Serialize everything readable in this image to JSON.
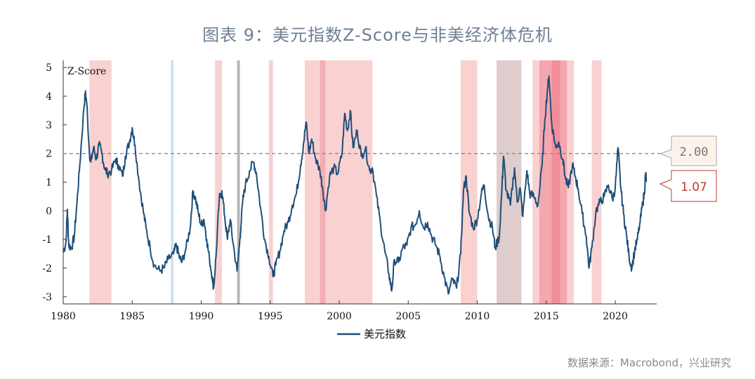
{
  "title": "图表 9：美元指数Z-Score与非美经济体危机",
  "source": "数据来源：Macrobond，兴业研究",
  "chart_data": {
    "type": "line",
    "ylabel": "Z-Score",
    "ylim": [
      -3.25,
      5.25
    ],
    "xlim": [
      1980,
      2023.0
    ],
    "yticks": [
      5,
      4,
      3,
      2,
      1,
      0,
      -1,
      -2,
      -3
    ],
    "xticks": [
      1980,
      1985,
      1990,
      1995,
      2000,
      2005,
      2010,
      2015,
      2020
    ],
    "reference_line": {
      "y": 2.0,
      "label": "2.00",
      "color": "#8c8c8c"
    },
    "last_value": {
      "y": 1.07,
      "label": "1.07",
      "color": "#c0392b"
    },
    "legend": [
      "美元指数"
    ],
    "series_color": "#1f4e79",
    "shaded_periods": [
      {
        "start": 1981.9,
        "end": 1983.5,
        "color": "#f8c9c9"
      },
      {
        "start": 1987.8,
        "end": 1988.0,
        "color": "#c9dbea"
      },
      {
        "start": 1991.0,
        "end": 1991.5,
        "color": "#f8c9c9"
      },
      {
        "start": 1992.6,
        "end": 1992.8,
        "color": "#aaaaaa"
      },
      {
        "start": 1994.9,
        "end": 1995.2,
        "color": "#f8c9c9"
      },
      {
        "start": 1997.5,
        "end": 2002.4,
        "color": "#f8c9c9"
      },
      {
        "start": 1998.6,
        "end": 1999.0,
        "color": "#f3a8ae"
      },
      {
        "start": 2008.8,
        "end": 2010.0,
        "color": "#f8c9c9"
      },
      {
        "start": 2011.4,
        "end": 2013.2,
        "color": "#d9c3c3"
      },
      {
        "start": 2014.0,
        "end": 2017.0,
        "color": "#f8c9c9"
      },
      {
        "start": 2014.5,
        "end": 2016.5,
        "color": "#f3a0a8"
      },
      {
        "start": 2015.4,
        "end": 2016.0,
        "color": "#f08a95"
      },
      {
        "start": 2018.3,
        "end": 2019.0,
        "color": "#f8c9c9"
      }
    ],
    "points": [
      [
        1980.0,
        -1.45
      ],
      [
        1980.2,
        -1.1
      ],
      [
        1980.3,
        0.05
      ],
      [
        1980.4,
        -1.2
      ],
      [
        1980.6,
        -1.3
      ],
      [
        1980.8,
        -0.9
      ],
      [
        1981.0,
        0.3
      ],
      [
        1981.2,
        1.6
      ],
      [
        1981.5,
        3.6
      ],
      [
        1981.6,
        4.1
      ],
      [
        1981.7,
        3.8
      ],
      [
        1981.9,
        2.0
      ],
      [
        1982.0,
        1.7
      ],
      [
        1982.2,
        2.2
      ],
      [
        1982.4,
        1.8
      ],
      [
        1982.6,
        2.3
      ],
      [
        1982.8,
        2.0
      ],
      [
        1983.0,
        1.5
      ],
      [
        1983.2,
        1.3
      ],
      [
        1983.5,
        1.4
      ],
      [
        1983.8,
        1.8
      ],
      [
        1984.0,
        1.6
      ],
      [
        1984.3,
        1.2
      ],
      [
        1984.5,
        1.9
      ],
      [
        1984.8,
        2.4
      ],
      [
        1985.0,
        2.9
      ],
      [
        1985.2,
        2.3
      ],
      [
        1985.5,
        1.0
      ],
      [
        1985.8,
        0.0
      ],
      [
        1986.0,
        -0.6
      ],
      [
        1986.3,
        -1.3
      ],
      [
        1986.6,
        -1.9
      ],
      [
        1987.0,
        -2.1
      ],
      [
        1987.3,
        -2.0
      ],
      [
        1987.6,
        -1.7
      ],
      [
        1988.0,
        -1.5
      ],
      [
        1988.2,
        -1.2
      ],
      [
        1988.4,
        -1.6
      ],
      [
        1988.6,
        -1.8
      ],
      [
        1988.9,
        -1.3
      ],
      [
        1989.2,
        -0.6
      ],
      [
        1989.4,
        0.7
      ],
      [
        1989.6,
        0.4
      ],
      [
        1989.8,
        -0.1
      ],
      [
        1990.0,
        -0.5
      ],
      [
        1990.2,
        -0.3
      ],
      [
        1990.4,
        -1.0
      ],
      [
        1990.6,
        -1.7
      ],
      [
        1990.8,
        -2.3
      ],
      [
        1990.9,
        -2.7
      ],
      [
        1991.1,
        -1.4
      ],
      [
        1991.3,
        0.4
      ],
      [
        1991.5,
        0.7
      ],
      [
        1991.7,
        -0.2
      ],
      [
        1991.9,
        -1.0
      ],
      [
        1992.1,
        -0.3
      ],
      [
        1992.3,
        -1.1
      ],
      [
        1992.6,
        -2.1
      ],
      [
        1992.8,
        -1.0
      ],
      [
        1993.0,
        0.3
      ],
      [
        1993.2,
        0.9
      ],
      [
        1993.5,
        1.4
      ],
      [
        1993.8,
        1.7
      ],
      [
        1994.0,
        1.3
      ],
      [
        1994.3,
        0.1
      ],
      [
        1994.6,
        -1.0
      ],
      [
        1994.9,
        -1.6
      ],
      [
        1995.2,
        -2.3
      ],
      [
        1995.4,
        -1.9
      ],
      [
        1995.7,
        -1.4
      ],
      [
        1996.0,
        -0.7
      ],
      [
        1996.3,
        -0.4
      ],
      [
        1996.6,
        0.2
      ],
      [
        1996.9,
        0.6
      ],
      [
        1997.2,
        1.6
      ],
      [
        1997.4,
        2.3
      ],
      [
        1997.6,
        3.1
      ],
      [
        1997.8,
        2.0
      ],
      [
        1998.0,
        2.5
      ],
      [
        1998.3,
        1.8
      ],
      [
        1998.6,
        1.4
      ],
      [
        1998.8,
        0.8
      ],
      [
        1999.0,
        0.0
      ],
      [
        1999.3,
        1.2
      ],
      [
        1999.6,
        1.5
      ],
      [
        1999.9,
        1.3
      ],
      [
        2000.2,
        2.0
      ],
      [
        2000.4,
        3.4
      ],
      [
        2000.6,
        2.8
      ],
      [
        2000.8,
        3.5
      ],
      [
        2001.0,
        2.2
      ],
      [
        2001.3,
        2.8
      ],
      [
        2001.6,
        1.9
      ],
      [
        2001.9,
        2.2
      ],
      [
        2002.2,
        1.4
      ],
      [
        2002.4,
        1.5
      ],
      [
        2002.7,
        0.5
      ],
      [
        2003.0,
        -0.5
      ],
      [
        2003.3,
        -1.4
      ],
      [
        2003.6,
        -2.2
      ],
      [
        2003.8,
        -2.8
      ],
      [
        2004.0,
        -1.7
      ],
      [
        2004.3,
        -1.8
      ],
      [
        2004.6,
        -1.3
      ],
      [
        2004.9,
        -1.2
      ],
      [
        2005.2,
        -0.6
      ],
      [
        2005.5,
        -0.5
      ],
      [
        2005.8,
        0.0
      ],
      [
        2006.1,
        -0.6
      ],
      [
        2006.4,
        -0.4
      ],
      [
        2006.7,
        -0.9
      ],
      [
        2007.0,
        -1.2
      ],
      [
        2007.3,
        -1.6
      ],
      [
        2007.6,
        -2.3
      ],
      [
        2007.9,
        -2.9
      ],
      [
        2008.2,
        -2.4
      ],
      [
        2008.5,
        -2.7
      ],
      [
        2008.8,
        -1.5
      ],
      [
        2009.0,
        0.7
      ],
      [
        2009.2,
        1.2
      ],
      [
        2009.4,
        0.0
      ],
      [
        2009.7,
        -0.6
      ],
      [
        2010.0,
        -0.3
      ],
      [
        2010.3,
        0.6
      ],
      [
        2010.5,
        0.9
      ],
      [
        2010.8,
        -0.2
      ],
      [
        2011.1,
        -0.6
      ],
      [
        2011.3,
        -1.3
      ],
      [
        2011.6,
        -0.9
      ],
      [
        2011.8,
        0.9
      ],
      [
        2011.9,
        1.9
      ],
      [
        2012.1,
        0.7
      ],
      [
        2012.4,
        0.2
      ],
      [
        2012.7,
        1.5
      ],
      [
        2012.9,
        0.3
      ],
      [
        2013.1,
        0.8
      ],
      [
        2013.3,
        -0.2
      ],
      [
        2013.6,
        1.4
      ],
      [
        2013.8,
        0.6
      ],
      [
        2014.1,
        0.5
      ],
      [
        2014.4,
        0.2
      ],
      [
        2014.7,
        1.6
      ],
      [
        2014.9,
        3.2
      ],
      [
        2015.1,
        4.3
      ],
      [
        2015.2,
        4.7
      ],
      [
        2015.4,
        3.0
      ],
      [
        2015.7,
        2.2
      ],
      [
        2015.9,
        2.4
      ],
      [
        2016.2,
        1.8
      ],
      [
        2016.4,
        1.1
      ],
      [
        2016.6,
        0.8
      ],
      [
        2016.9,
        1.6
      ],
      [
        2017.1,
        1.2
      ],
      [
        2017.3,
        0.8
      ],
      [
        2017.6,
        -0.1
      ],
      [
        2017.9,
        -0.9
      ],
      [
        2018.1,
        -2.0
      ],
      [
        2018.3,
        -1.3
      ],
      [
        2018.6,
        0.0
      ],
      [
        2018.9,
        0.3
      ],
      [
        2019.2,
        0.5
      ],
      [
        2019.5,
        0.9
      ],
      [
        2019.8,
        0.4
      ],
      [
        2020.0,
        0.8
      ],
      [
        2020.2,
        2.2
      ],
      [
        2020.4,
        0.8
      ],
      [
        2020.6,
        -0.1
      ],
      [
        2020.8,
        -0.8
      ],
      [
        2021.0,
        -1.6
      ],
      [
        2021.2,
        -2.0
      ],
      [
        2021.4,
        -1.4
      ],
      [
        2021.6,
        -1.0
      ],
      [
        2021.8,
        -0.4
      ],
      [
        2022.0,
        0.3
      ],
      [
        2022.1,
        0.6
      ],
      [
        2022.2,
        1.3
      ],
      [
        2022.25,
        1.07
      ]
    ]
  }
}
